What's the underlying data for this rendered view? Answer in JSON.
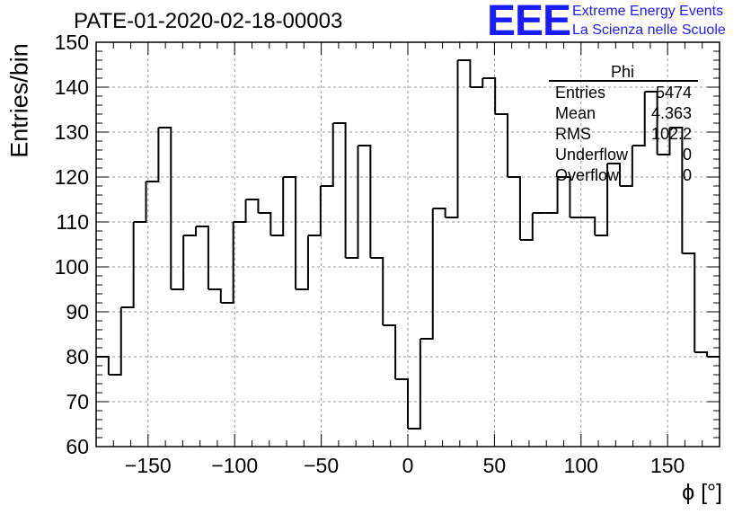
{
  "title": "PATE-01-2020-02-18-00003",
  "logo": {
    "mark": "EEE",
    "line1": "Extreme Energy Events",
    "line2": "La Scienza nelle Scuole"
  },
  "stats_box": {
    "title": "Phi",
    "rows": [
      {
        "name": "Entries",
        "value": "5474"
      },
      {
        "name": "Mean",
        "value": "4.363"
      },
      {
        "name": "RMS",
        "value": "102.2"
      },
      {
        "name": "Underflow",
        "value": "0"
      },
      {
        "name": "Overflow",
        "value": "0"
      }
    ]
  },
  "chart_data": {
    "type": "histogram",
    "title": "PATE-01-2020-02-18-00003",
    "xlabel": "ϕ [°]",
    "ylabel": "Entries/bin",
    "xlim": [
      -180,
      180
    ],
    "ylim": [
      60,
      150
    ],
    "bin_width": 7.2,
    "bin_edges_start": -180,
    "values": [
      80,
      76,
      91,
      110,
      119,
      131,
      95,
      107,
      109,
      95,
      92,
      110,
      115,
      112,
      107,
      120,
      95,
      107,
      118,
      132,
      102,
      127,
      102,
      87,
      75,
      64,
      84,
      113,
      111,
      146,
      140,
      142,
      134,
      120,
      106,
      112,
      112,
      120,
      111,
      111,
      107,
      123,
      118,
      127,
      139,
      125,
      131,
      103,
      81,
      80
    ],
    "xticks": [
      -150,
      -100,
      -50,
      0,
      50,
      100,
      150
    ],
    "xtick_labels": [
      "−150",
      "−100",
      "−50",
      "0",
      "50",
      "100",
      "150"
    ],
    "yticks": [
      60,
      70,
      80,
      90,
      100,
      110,
      120,
      130,
      140,
      150
    ],
    "ytick_labels": [
      "60",
      "70",
      "80",
      "90",
      "100",
      "110",
      "120",
      "130",
      "140",
      "150"
    ],
    "grid": true,
    "line_color": "#000000",
    "grid_color": "#999999"
  }
}
